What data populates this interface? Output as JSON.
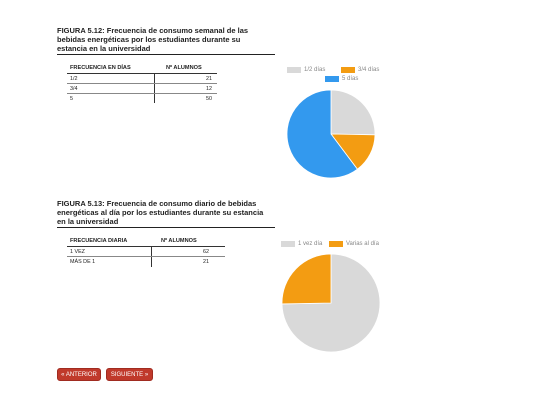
{
  "figure1": {
    "title_line1": "FIGURA 5.12: Frecuencia de consumo semanal de las",
    "title_line2": "bebidas energéticas por los estudiantes durante su",
    "title_line3": "estancia en la universidad",
    "table": {
      "col1": "FRECUENCIA EN DÍAS",
      "col2": "Nº ALUMNOS",
      "rows": [
        {
          "label": "1/2",
          "value": "21"
        },
        {
          "label": "3/4",
          "value": "12"
        },
        {
          "label": "5",
          "value": "50"
        }
      ]
    }
  },
  "figure2": {
    "title_line1": "FIGURA 5.13: Frecuencia de consumo diario de bebidas",
    "title_line2": "energéticas al día por los estudiantes durante su estancia",
    "title_line3": "en la universidad",
    "table": {
      "col1": "FRECUENCIA DIARIA",
      "col2": "Nº ALUMNOS",
      "rows": [
        {
          "label": "1 VEZ",
          "value": "62"
        },
        {
          "label": "MÁS DE 1",
          "value": "21"
        }
      ]
    }
  },
  "chart_data": [
    {
      "type": "pie",
      "categories": [
        "1/2 días",
        "3/4 días",
        "5 días"
      ],
      "values": [
        21,
        12,
        50
      ],
      "colors": [
        "#d9d9d9",
        "#f39c12",
        "#3399ee"
      ],
      "legend_position": "top"
    },
    {
      "type": "pie",
      "categories": [
        "1 vez día",
        "Varias al día"
      ],
      "values": [
        62,
        21
      ],
      "colors": [
        "#d9d9d9",
        "#f39c12"
      ],
      "legend_position": "top"
    }
  ],
  "nav": {
    "prev_label": "« ANTERIOR",
    "next_label": "SIGUIENTE »",
    "button_color": "#c0392b"
  }
}
